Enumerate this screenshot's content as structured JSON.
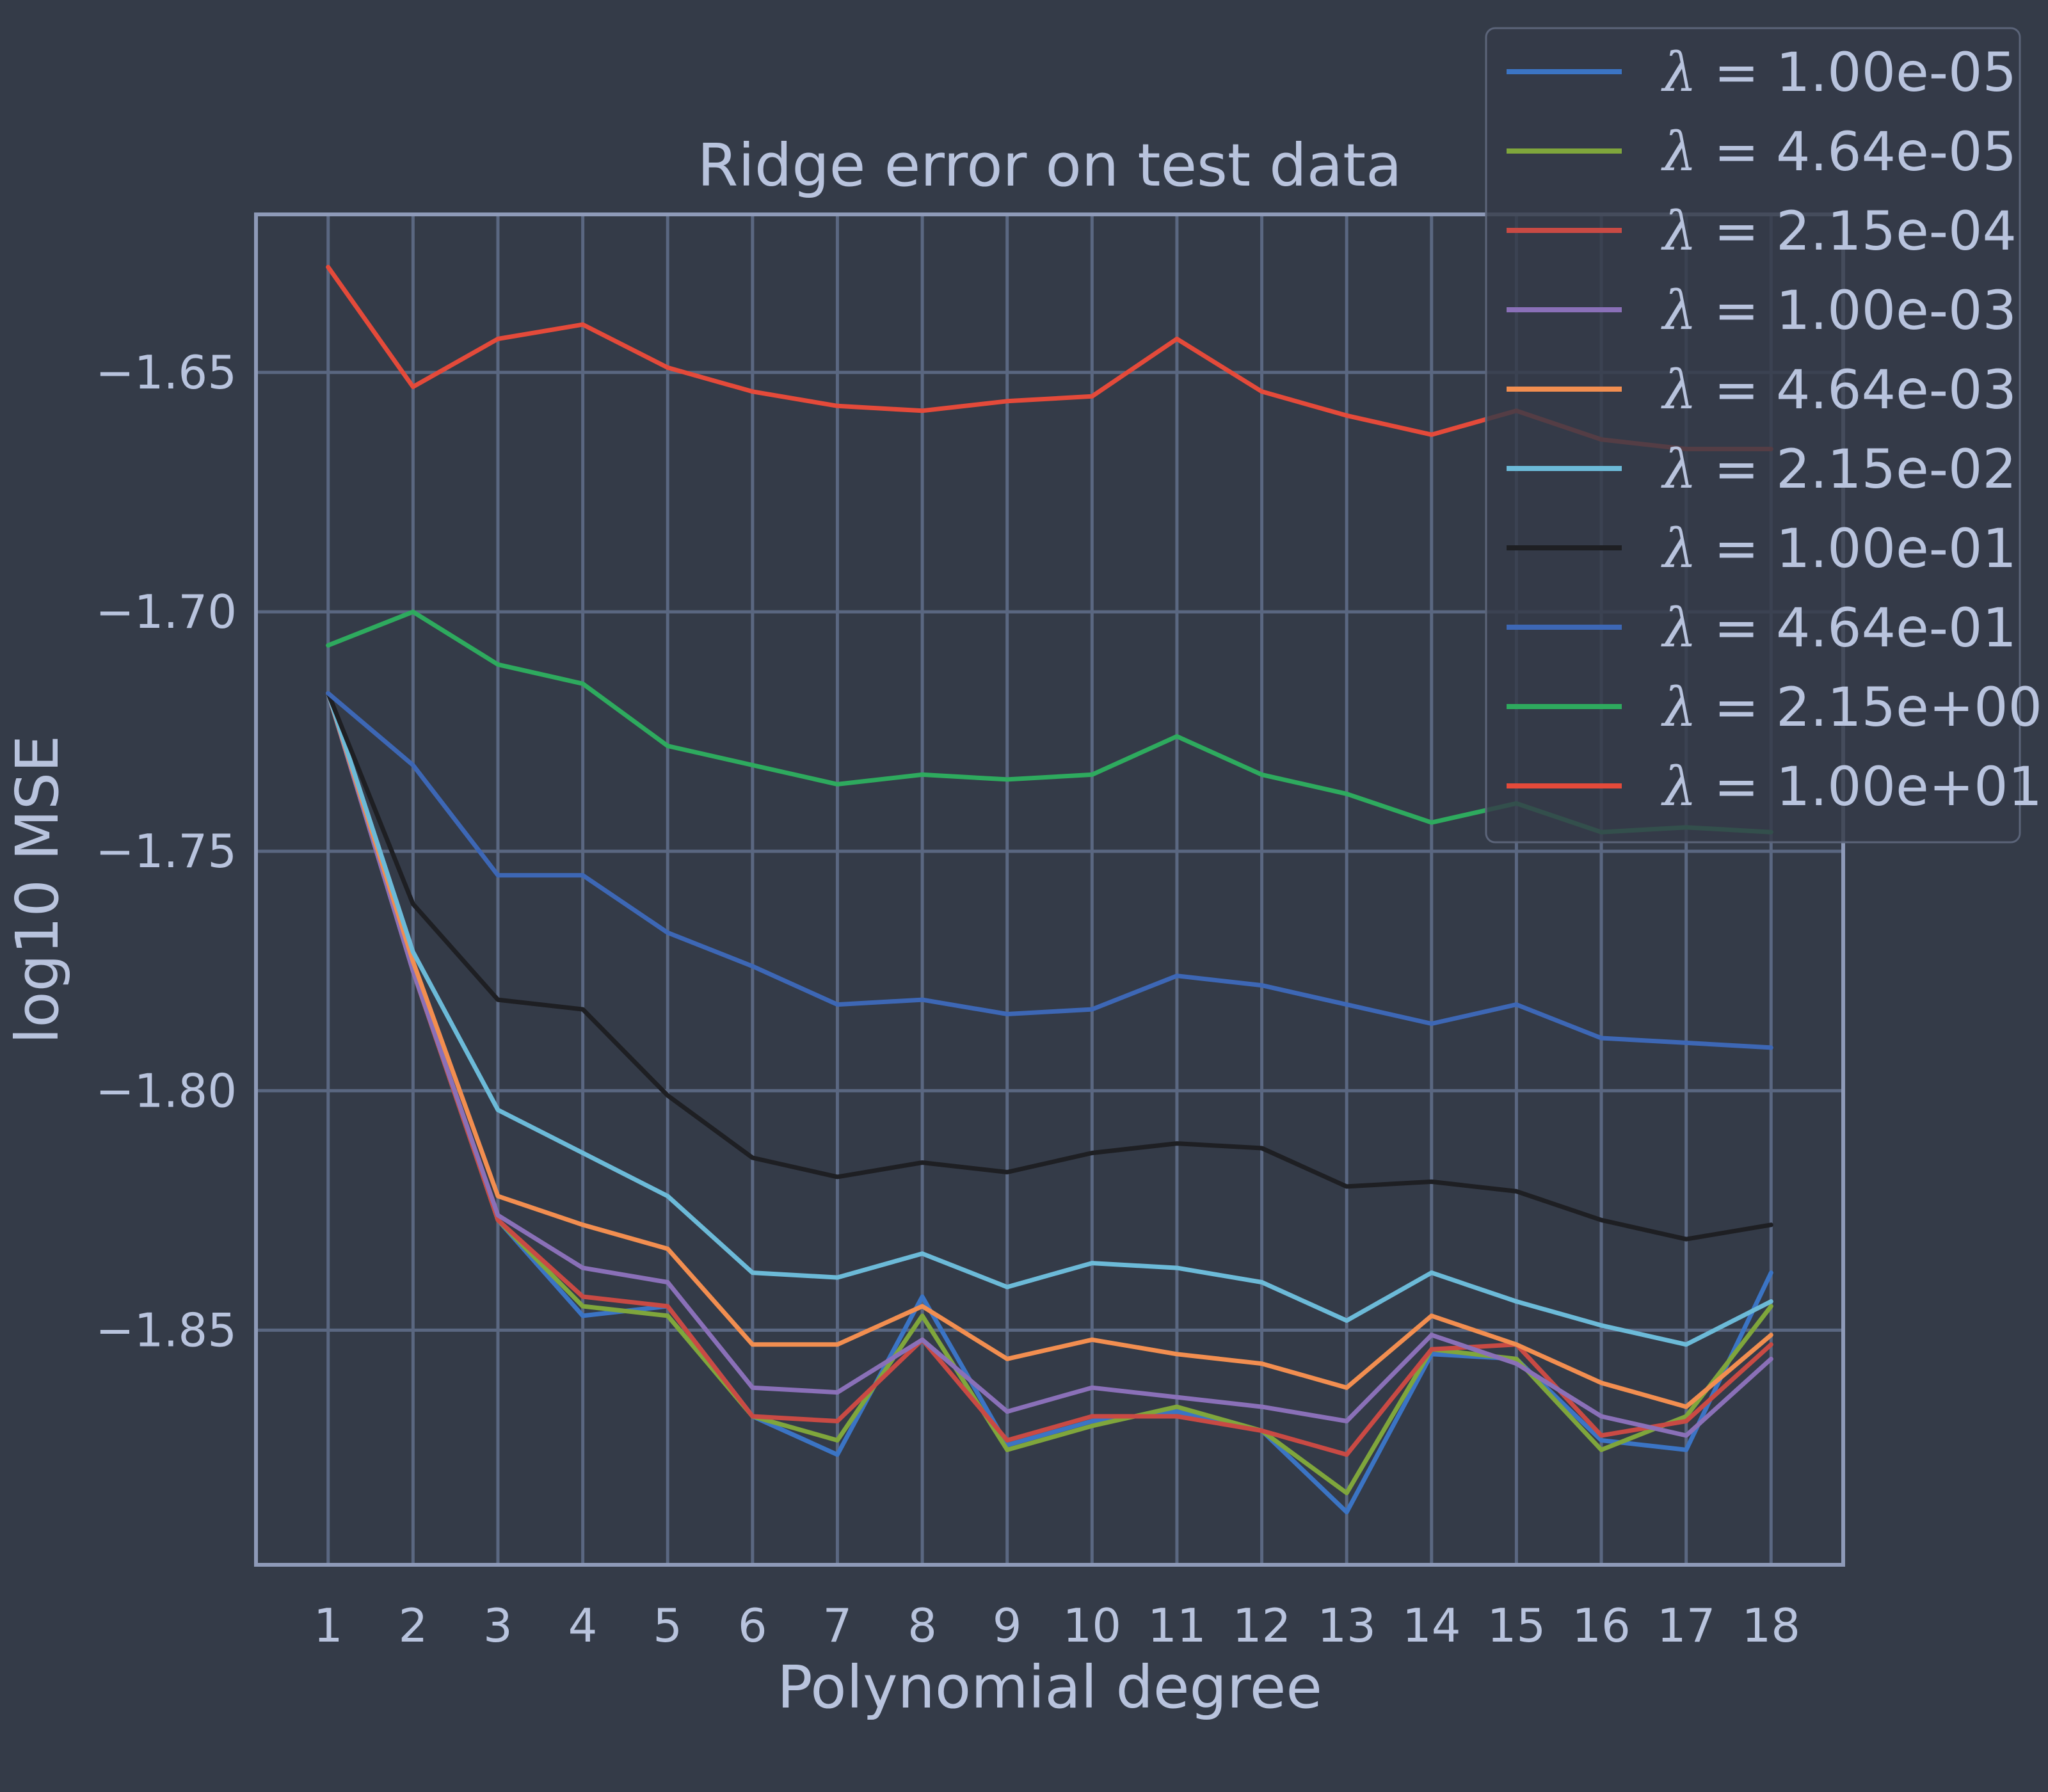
{
  "chart_data": {
    "type": "line",
    "title": "Ridge error on test data",
    "xlabel": "Polynomial degree",
    "ylabel": "log10 MSE",
    "x": [
      1,
      2,
      3,
      4,
      5,
      6,
      7,
      8,
      9,
      10,
      11,
      12,
      13,
      14,
      15,
      16,
      17,
      18
    ],
    "xlim": [
      0.15,
      18.85
    ],
    "ylim": [
      -1.899,
      -1.617
    ],
    "yticks": [
      -1.65,
      -1.7,
      -1.75,
      -1.8,
      -1.85
    ],
    "ytick_labels": [
      "−1.65",
      "−1.70",
      "−1.75",
      "−1.80",
      "−1.85"
    ],
    "grid": true,
    "legend_position": "top-right",
    "legend_symbol": "λ",
    "series": [
      {
        "name": "= 1.00e-05",
        "color": "#3b74c4",
        "values": [
          -1.717,
          -1.775,
          -1.827,
          -1.847,
          -1.845,
          -1.868,
          -1.876,
          -1.843,
          -1.874,
          -1.869,
          -1.867,
          -1.871,
          -1.888,
          -1.855,
          -1.856,
          -1.873,
          -1.875,
          -1.838
        ]
      },
      {
        "name": "= 4.64e-05",
        "color": "#7fa63c",
        "values": [
          -1.717,
          -1.775,
          -1.827,
          -1.845,
          -1.847,
          -1.868,
          -1.873,
          -1.847,
          -1.875,
          -1.87,
          -1.866,
          -1.871,
          -1.884,
          -1.854,
          -1.856,
          -1.875,
          -1.868,
          -1.845
        ]
      },
      {
        "name": "= 2.15e-04",
        "color": "#c94a44",
        "values": [
          -1.717,
          -1.775,
          -1.827,
          -1.843,
          -1.845,
          -1.868,
          -1.869,
          -1.852,
          -1.873,
          -1.868,
          -1.868,
          -1.871,
          -1.876,
          -1.854,
          -1.853,
          -1.872,
          -1.869,
          -1.853
        ]
      },
      {
        "name": "= 1.00e-03",
        "color": "#8a70b8",
        "values": [
          -1.717,
          -1.775,
          -1.826,
          -1.837,
          -1.84,
          -1.862,
          -1.863,
          -1.852,
          -1.867,
          -1.862,
          -1.864,
          -1.866,
          -1.869,
          -1.851,
          -1.857,
          -1.868,
          -1.872,
          -1.856
        ]
      },
      {
        "name": "= 4.64e-03",
        "color": "#f28e50",
        "values": [
          -1.717,
          -1.773,
          -1.822,
          -1.828,
          -1.833,
          -1.853,
          -1.853,
          -1.845,
          -1.856,
          -1.852,
          -1.855,
          -1.857,
          -1.862,
          -1.847,
          -1.853,
          -1.861,
          -1.866,
          -1.851
        ]
      },
      {
        "name": "= 2.15e-02",
        "color": "#6cbad8",
        "values": [
          -1.717,
          -1.771,
          -1.804,
          -1.813,
          -1.822,
          -1.838,
          -1.839,
          -1.834,
          -1.841,
          -1.836,
          -1.837,
          -1.84,
          -1.848,
          -1.838,
          -1.844,
          -1.849,
          -1.853,
          -1.844
        ]
      },
      {
        "name": "= 1.00e-01",
        "color": "#1e1f23",
        "values": [
          -1.717,
          -1.761,
          -1.781,
          -1.783,
          -1.801,
          -1.814,
          -1.818,
          -1.815,
          -1.817,
          -1.813,
          -1.811,
          -1.812,
          -1.82,
          -1.819,
          -1.821,
          -1.827,
          -1.831,
          -1.828
        ]
      },
      {
        "name": "= 4.64e-01",
        "color": "#3d67b5",
        "values": [
          -1.717,
          -1.732,
          -1.755,
          -1.755,
          -1.767,
          -1.774,
          -1.782,
          -1.781,
          -1.784,
          -1.783,
          -1.776,
          -1.778,
          -1.782,
          -1.786,
          -1.782,
          -1.789,
          -1.79,
          -1.791
        ]
      },
      {
        "name": "= 2.15e+00",
        "color": "#2eaa5e",
        "values": [
          -1.707,
          -1.7,
          -1.711,
          -1.715,
          -1.728,
          -1.732,
          -1.736,
          -1.734,
          -1.735,
          -1.734,
          -1.726,
          -1.734,
          -1.738,
          -1.744,
          -1.74,
          -1.746,
          -1.745,
          -1.746
        ]
      },
      {
        "name": "= 1.00e+01",
        "color": "#e44a3a",
        "values": [
          -1.628,
          -1.653,
          -1.643,
          -1.64,
          -1.649,
          -1.654,
          -1.657,
          -1.658,
          -1.656,
          -1.655,
          -1.643,
          -1.654,
          -1.659,
          -1.663,
          -1.658,
          -1.664,
          -1.666,
          -1.666
        ]
      }
    ]
  }
}
